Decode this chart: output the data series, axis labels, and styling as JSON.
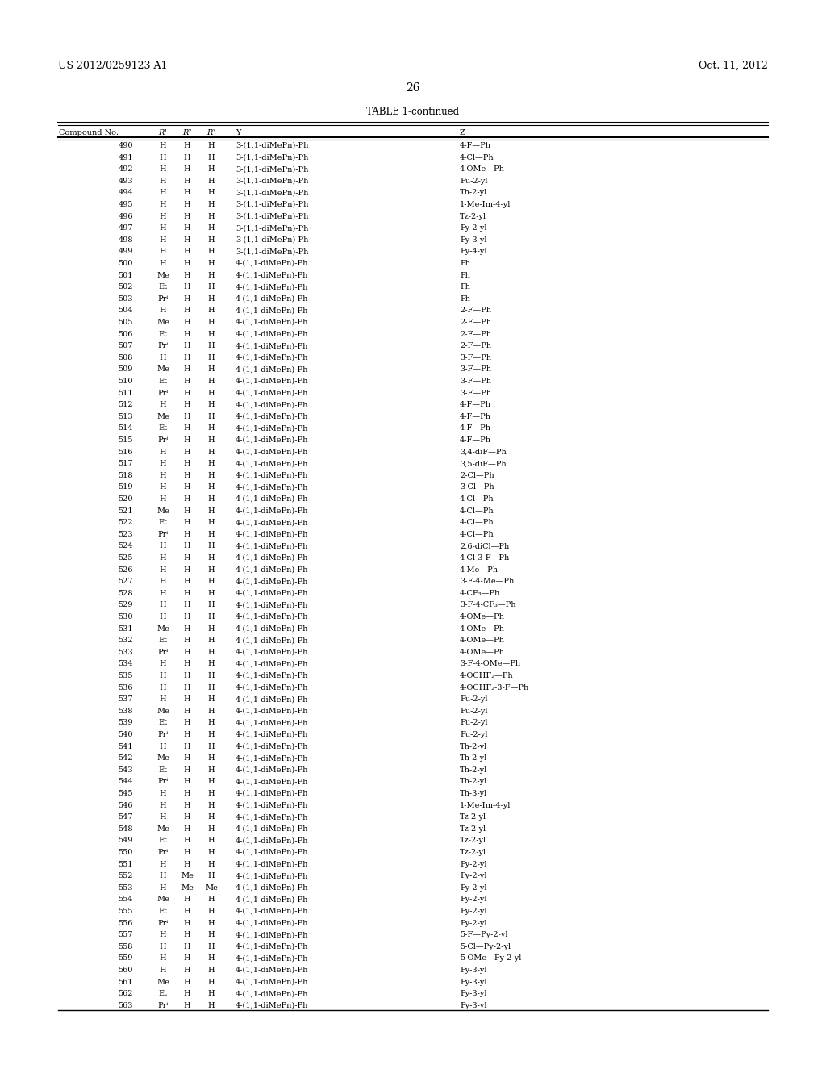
{
  "header_left": "US 2012/0259123 A1",
  "header_right": "Oct. 11, 2012",
  "page_number": "26",
  "table_title": "TABLE 1-continued",
  "rows": [
    [
      "490",
      "H",
      "H",
      "H",
      "3-(1,1-diMePn)-Ph",
      "4-F—Ph"
    ],
    [
      "491",
      "H",
      "H",
      "H",
      "3-(1,1-diMePn)-Ph",
      "4-Cl—Ph"
    ],
    [
      "492",
      "H",
      "H",
      "H",
      "3-(1,1-diMePn)-Ph",
      "4-OMe—Ph"
    ],
    [
      "493",
      "H",
      "H",
      "H",
      "3-(1,1-diMePn)-Ph",
      "Fu-2-yl"
    ],
    [
      "494",
      "H",
      "H",
      "H",
      "3-(1,1-diMePn)-Ph",
      "Th-2-yl"
    ],
    [
      "495",
      "H",
      "H",
      "H",
      "3-(1,1-diMePn)-Ph",
      "1-Me-Im-4-yl"
    ],
    [
      "496",
      "H",
      "H",
      "H",
      "3-(1,1-diMePn)-Ph",
      "Tz-2-yl"
    ],
    [
      "497",
      "H",
      "H",
      "H",
      "3-(1,1-diMePn)-Ph",
      "Py-2-yl"
    ],
    [
      "498",
      "H",
      "H",
      "H",
      "3-(1,1-diMePn)-Ph",
      "Py-3-yl"
    ],
    [
      "499",
      "H",
      "H",
      "H",
      "3-(1,1-diMePn)-Ph",
      "Py-4-yl"
    ],
    [
      "500",
      "H",
      "H",
      "H",
      "4-(1,1-diMePn)-Ph",
      "Ph"
    ],
    [
      "501",
      "Me",
      "H",
      "H",
      "4-(1,1-diMePn)-Ph",
      "Ph"
    ],
    [
      "502",
      "Et",
      "H",
      "H",
      "4-(1,1-diMePn)-Ph",
      "Ph"
    ],
    [
      "503",
      "Prⁱ",
      "H",
      "H",
      "4-(1,1-diMePn)-Ph",
      "Ph"
    ],
    [
      "504",
      "H",
      "H",
      "H",
      "4-(1,1-diMePn)-Ph",
      "2-F—Ph"
    ],
    [
      "505",
      "Me",
      "H",
      "H",
      "4-(1,1-diMePn)-Ph",
      "2-F—Ph"
    ],
    [
      "506",
      "Et",
      "H",
      "H",
      "4-(1,1-diMePn)-Ph",
      "2-F—Ph"
    ],
    [
      "507",
      "Prⁱ",
      "H",
      "H",
      "4-(1,1-diMePn)-Ph",
      "2-F—Ph"
    ],
    [
      "508",
      "H",
      "H",
      "H",
      "4-(1,1-diMePn)-Ph",
      "3-F—Ph"
    ],
    [
      "509",
      "Me",
      "H",
      "H",
      "4-(1,1-diMePn)-Ph",
      "3-F—Ph"
    ],
    [
      "510",
      "Et",
      "H",
      "H",
      "4-(1,1-diMePn)-Ph",
      "3-F—Ph"
    ],
    [
      "511",
      "Prⁱ",
      "H",
      "H",
      "4-(1,1-diMePn)-Ph",
      "3-F—Ph"
    ],
    [
      "512",
      "H",
      "H",
      "H",
      "4-(1,1-diMePn)-Ph",
      "4-F—Ph"
    ],
    [
      "513",
      "Me",
      "H",
      "H",
      "4-(1,1-diMePn)-Ph",
      "4-F—Ph"
    ],
    [
      "514",
      "Et",
      "H",
      "H",
      "4-(1,1-diMePn)-Ph",
      "4-F—Ph"
    ],
    [
      "515",
      "Prⁱ",
      "H",
      "H",
      "4-(1,1-diMePn)-Ph",
      "4-F—Ph"
    ],
    [
      "516",
      "H",
      "H",
      "H",
      "4-(1,1-diMePn)-Ph",
      "3,4-diF—Ph"
    ],
    [
      "517",
      "H",
      "H",
      "H",
      "4-(1,1-diMePn)-Ph",
      "3,5-diF—Ph"
    ],
    [
      "518",
      "H",
      "H",
      "H",
      "4-(1,1-diMePn)-Ph",
      "2-Cl—Ph"
    ],
    [
      "519",
      "H",
      "H",
      "H",
      "4-(1,1-diMePn)-Ph",
      "3-Cl—Ph"
    ],
    [
      "520",
      "H",
      "H",
      "H",
      "4-(1,1-diMePn)-Ph",
      "4-Cl—Ph"
    ],
    [
      "521",
      "Me",
      "H",
      "H",
      "4-(1,1-diMePn)-Ph",
      "4-Cl—Ph"
    ],
    [
      "522",
      "Et",
      "H",
      "H",
      "4-(1,1-diMePn)-Ph",
      "4-Cl—Ph"
    ],
    [
      "523",
      "Prⁱ",
      "H",
      "H",
      "4-(1,1-diMePn)-Ph",
      "4-Cl—Ph"
    ],
    [
      "524",
      "H",
      "H",
      "H",
      "4-(1,1-diMePn)-Ph",
      "2,6-diCl—Ph"
    ],
    [
      "525",
      "H",
      "H",
      "H",
      "4-(1,1-diMePn)-Ph",
      "4-Cl-3-F—Ph"
    ],
    [
      "526",
      "H",
      "H",
      "H",
      "4-(1,1-diMePn)-Ph",
      "4-Me—Ph"
    ],
    [
      "527",
      "H",
      "H",
      "H",
      "4-(1,1-diMePn)-Ph",
      "3-F-4-Me—Ph"
    ],
    [
      "528",
      "H",
      "H",
      "H",
      "4-(1,1-diMePn)-Ph",
      "4-CF₃—Ph"
    ],
    [
      "529",
      "H",
      "H",
      "H",
      "4-(1,1-diMePn)-Ph",
      "3-F-4-CF₃—Ph"
    ],
    [
      "530",
      "H",
      "H",
      "H",
      "4-(1,1-diMePn)-Ph",
      "4-OMe—Ph"
    ],
    [
      "531",
      "Me",
      "H",
      "H",
      "4-(1,1-diMePn)-Ph",
      "4-OMe—Ph"
    ],
    [
      "532",
      "Et",
      "H",
      "H",
      "4-(1,1-diMePn)-Ph",
      "4-OMe—Ph"
    ],
    [
      "533",
      "Prⁱ",
      "H",
      "H",
      "4-(1,1-diMePn)-Ph",
      "4-OMe—Ph"
    ],
    [
      "534",
      "H",
      "H",
      "H",
      "4-(1,1-diMePn)-Ph",
      "3-F-4-OMe—Ph"
    ],
    [
      "535",
      "H",
      "H",
      "H",
      "4-(1,1-diMePn)-Ph",
      "4-OCHF₂—Ph"
    ],
    [
      "536",
      "H",
      "H",
      "H",
      "4-(1,1-diMePn)-Ph",
      "4-OCHF₂-3-F—Ph"
    ],
    [
      "537",
      "H",
      "H",
      "H",
      "4-(1,1-diMePn)-Ph",
      "Fu-2-yl"
    ],
    [
      "538",
      "Me",
      "H",
      "H",
      "4-(1,1-diMePn)-Ph",
      "Fu-2-yl"
    ],
    [
      "539",
      "Et",
      "H",
      "H",
      "4-(1,1-diMePn)-Ph",
      "Fu-2-yl"
    ],
    [
      "540",
      "Prⁱ",
      "H",
      "H",
      "4-(1,1-diMePn)-Ph",
      "Fu-2-yl"
    ],
    [
      "541",
      "H",
      "H",
      "H",
      "4-(1,1-diMePn)-Ph",
      "Th-2-yl"
    ],
    [
      "542",
      "Me",
      "H",
      "H",
      "4-(1,1-diMePn)-Ph",
      "Th-2-yl"
    ],
    [
      "543",
      "Et",
      "H",
      "H",
      "4-(1,1-diMePn)-Ph",
      "Th-2-yl"
    ],
    [
      "544",
      "Prⁱ",
      "H",
      "H",
      "4-(1,1-diMePn)-Ph",
      "Th-2-yl"
    ],
    [
      "545",
      "H",
      "H",
      "H",
      "4-(1,1-diMePn)-Ph",
      "Th-3-yl"
    ],
    [
      "546",
      "H",
      "H",
      "H",
      "4-(1,1-diMePn)-Ph",
      "1-Me-Im-4-yl"
    ],
    [
      "547",
      "H",
      "H",
      "H",
      "4-(1,1-diMePn)-Ph",
      "Tz-2-yl"
    ],
    [
      "548",
      "Me",
      "H",
      "H",
      "4-(1,1-diMePn)-Ph",
      "Tz-2-yl"
    ],
    [
      "549",
      "Et",
      "H",
      "H",
      "4-(1,1-diMePn)-Ph",
      "Tz-2-yl"
    ],
    [
      "550",
      "Prⁱ",
      "H",
      "H",
      "4-(1,1-diMePn)-Ph",
      "Tz-2-yl"
    ],
    [
      "551",
      "H",
      "H",
      "H",
      "4-(1,1-diMePn)-Ph",
      "Py-2-yl"
    ],
    [
      "552",
      "H",
      "Me",
      "H",
      "4-(1,1-diMePn)-Ph",
      "Py-2-yl"
    ],
    [
      "553",
      "H",
      "Me",
      "Me",
      "4-(1,1-diMePn)-Ph",
      "Py-2-yl"
    ],
    [
      "554",
      "Me",
      "H",
      "H",
      "4-(1,1-diMePn)-Ph",
      "Py-2-yl"
    ],
    [
      "555",
      "Et",
      "H",
      "H",
      "4-(1,1-diMePn)-Ph",
      "Py-2-yl"
    ],
    [
      "556",
      "Prⁱ",
      "H",
      "H",
      "4-(1,1-diMePn)-Ph",
      "Py-2-yl"
    ],
    [
      "557",
      "H",
      "H",
      "H",
      "4-(1,1-diMePn)-Ph",
      "5-F—Py-2-yl"
    ],
    [
      "558",
      "H",
      "H",
      "H",
      "4-(1,1-diMePn)-Ph",
      "5-Cl—Py-2-yl"
    ],
    [
      "559",
      "H",
      "H",
      "H",
      "4-(1,1-diMePn)-Ph",
      "5-OMe—Py-2-yl"
    ],
    [
      "560",
      "H",
      "H",
      "H",
      "4-(1,1-diMePn)-Ph",
      "Py-3-yl"
    ],
    [
      "561",
      "Me",
      "H",
      "H",
      "4-(1,1-diMePn)-Ph",
      "Py-3-yl"
    ],
    [
      "562",
      "Et",
      "H",
      "H",
      "4-(1,1-diMePn)-Ph",
      "Py-3-yl"
    ],
    [
      "563",
      "Prⁱ",
      "H",
      "H",
      "4-(1,1-diMePn)-Ph",
      "Py-3-yl"
    ]
  ],
  "bg_color": "#ffffff",
  "text_color": "#000000",
  "font_size": 7.0,
  "header_font_size": 9.0,
  "title_font_size": 8.5,
  "page_num_font_size": 10.0
}
